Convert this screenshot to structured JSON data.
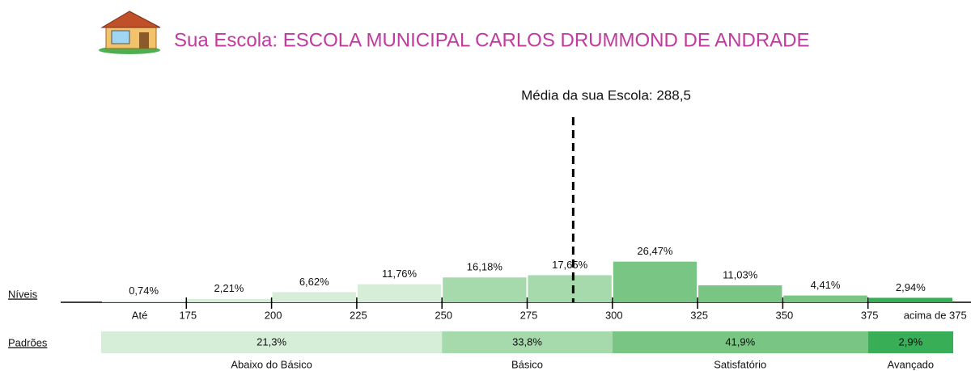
{
  "chart_data": {
    "type": "histogram",
    "title": "Sua Escola: ESCOLA MUNICIPAL CARLOS DRUMMOND DE ANDRADE",
    "mean": 288.5,
    "mean_label": "Média da sua Escola: 288,5",
    "levels_label": "Níveis",
    "standards_label": "Padrões",
    "bins": [
      150,
      175,
      200,
      225,
      250,
      275,
      300,
      325,
      350,
      375,
      400
    ],
    "values": [
      0.74,
      2.21,
      6.62,
      11.76,
      16.18,
      17.65,
      26.47,
      11.03,
      4.41,
      2.94
    ],
    "value_labels": [
      "0,74%",
      "2,21%",
      "6,62%",
      "11,76%",
      "16,18%",
      "17,65%",
      "26,47%",
      "11,03%",
      "4,41%",
      "2,94%"
    ],
    "xlim": [
      150,
      400
    ],
    "xticks": [
      175,
      200,
      225,
      250,
      275,
      300,
      325,
      350,
      375
    ],
    "below_label": "Até",
    "above_label": "acima de 375",
    "ylim": [
      0,
      30
    ],
    "standards": {
      "names": [
        "Abaixo do Básico",
        "Básico",
        "Satisfatório",
        "Avançado"
      ],
      "breaks": [
        150,
        250,
        300,
        375,
        400
      ],
      "values": [
        21.3,
        33.8,
        41.9,
        2.9
      ],
      "value_labels": [
        "21,3%",
        "33,8%",
        "41,9%",
        "2,9%"
      ],
      "colors": [
        "#d6eed8",
        "#a6d9ab",
        "#79c583",
        "#38ae57"
      ]
    }
  }
}
